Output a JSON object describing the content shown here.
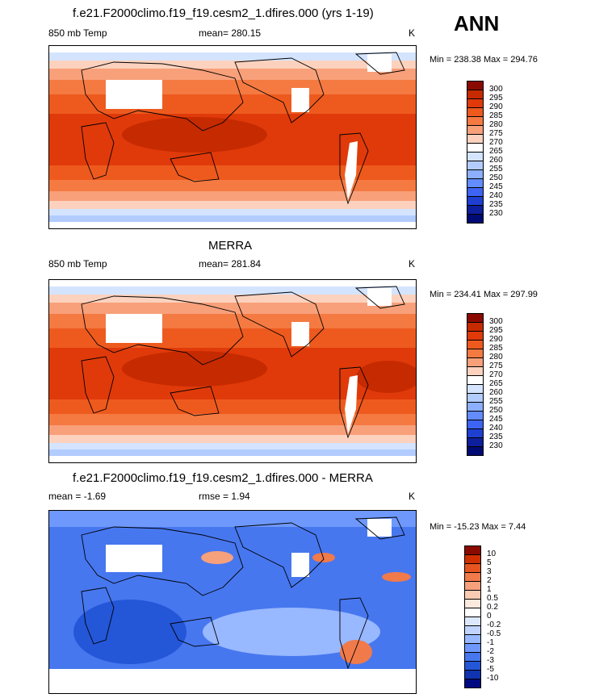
{
  "header": {
    "label": "ANN"
  },
  "panels": [
    {
      "title": "f.e21.F2000climo.f19_f19.cesm2_1.dfires.000 (yrs 1-19)",
      "left": "850 mb Temp",
      "center": "mean= 280.15",
      "right": "K",
      "stats": "Min = 238.38 Max = 294.76",
      "colorbar": [
        "300",
        "295",
        "290",
        "285",
        "280",
        "275",
        "270",
        "265",
        "260",
        "255",
        "250",
        "245",
        "240",
        "235",
        "230"
      ]
    },
    {
      "title": "MERRA",
      "left": "850 mb Temp",
      "center": "mean= 281.84",
      "right": "K",
      "stats": "Min = 234.41 Max = 297.99",
      "colorbar": [
        "300",
        "295",
        "290",
        "285",
        "280",
        "275",
        "270",
        "265",
        "260",
        "255",
        "250",
        "245",
        "240",
        "235",
        "230"
      ]
    },
    {
      "title": "f.e21.F2000climo.f19_f19.cesm2_1.dfires.000 - MERRA",
      "left": "mean =  -1.69",
      "center": "rmse =   1.94",
      "right": "K",
      "stats": "Min = -15.23 Max =   7.44",
      "colorbar": [
        "10",
        "5",
        "3",
        "2",
        "1",
        "0.5",
        "0.2",
        "0",
        "-0.2",
        "-0.5",
        "-1",
        "-2",
        "-3",
        "-5",
        "-10"
      ]
    }
  ],
  "colors": {
    "warm_scale": [
      "#8b0a00",
      "#c62a00",
      "#e03a0a",
      "#ee5a1e",
      "#f47a42",
      "#f8a07a",
      "#fcd2be",
      "#ffffff",
      "#d4e4ff",
      "#b2ccff",
      "#8cb0ff",
      "#628cff",
      "#3d64f2",
      "#1e3fcf",
      "#0d1f9c",
      "#000a73"
    ],
    "diff_scale": [
      "#8b0a00",
      "#d03000",
      "#e65420",
      "#f07a4a",
      "#f6a07c",
      "#fbcab3",
      "#fde8de",
      "#ffffff",
      "#dde8ff",
      "#c0d4ff",
      "#98b8ff",
      "#6e98fb",
      "#4777ef",
      "#2456d8",
      "#1034b0",
      "#000a80"
    ]
  }
}
